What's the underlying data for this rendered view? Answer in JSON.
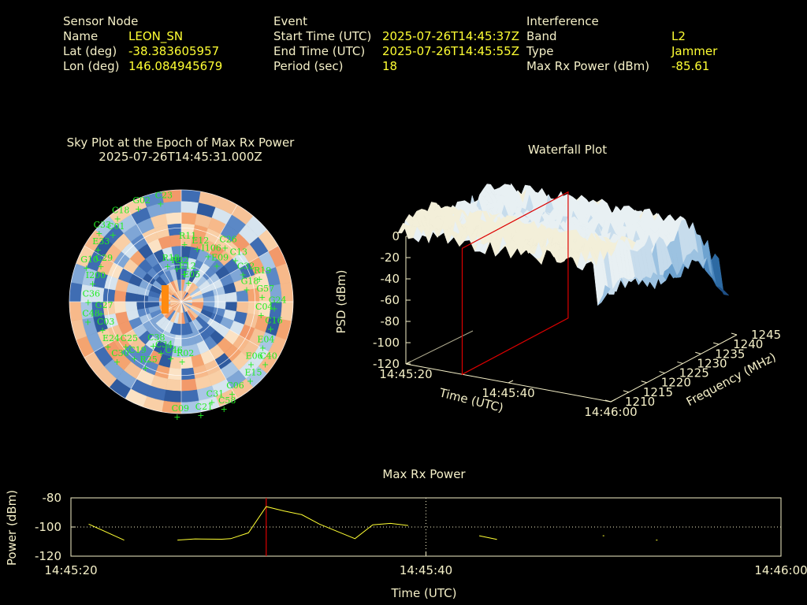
{
  "header": {
    "sensor": {
      "heading": "Sensor Node",
      "rows": [
        {
          "label": "Name",
          "value": "LEON_SN"
        },
        {
          "label": "Lat (deg)",
          "value": "-38.383605957"
        },
        {
          "label": "Lon (deg)",
          "value": "146.084945679"
        }
      ]
    },
    "event": {
      "heading": "Event",
      "rows": [
        {
          "label": "Start Time (UTC)",
          "value": "2025-07-26T14:45:37Z"
        },
        {
          "label": "End Time (UTC)",
          "value": "2025-07-26T14:45:55Z"
        },
        {
          "label": "Period (sec)",
          "value": "18"
        }
      ]
    },
    "interference": {
      "heading": "Interference",
      "rows": [
        {
          "label": "Band",
          "value": "L2"
        },
        {
          "label": "Type",
          "value": "Jammer"
        },
        {
          "label": "Max Rx Power (dBm)",
          "value": "-85.61"
        }
      ]
    }
  },
  "colors": {
    "label": "#f5f0c8",
    "value": "#ffff33",
    "satellite": "#22ee22",
    "marker_line": "#dd0000",
    "power_line": "#ffff33"
  },
  "chart_data": [
    {
      "type": "heatmap",
      "id": "sky_plot",
      "title": "Sky Plot at the Epoch of Max Rx Power",
      "subtitle": "2025-07-26T14:45:31.000Z",
      "satellites": [
        "E05",
        "C31",
        "C29",
        "G18",
        "C38",
        "C23",
        "E06",
        "G27",
        "E09",
        "C09",
        "C01",
        "C04",
        "C25",
        "E12",
        "C06",
        "I200",
        "C32",
        "C34",
        "G02",
        "E04",
        "C03",
        "I106",
        "C21",
        "E33",
        "G57",
        "C19",
        "R32",
        "E15",
        "C36",
        "C13",
        "C46",
        "C18",
        "C16",
        "E24",
        "E12",
        "C58",
        "G10",
        "R19",
        "R25",
        "R18",
        "C40",
        "C48",
        "C26",
        "R02",
        "C33",
        "G24",
        "C30",
        "R11"
      ]
    },
    {
      "type": "area",
      "id": "waterfall",
      "title": "Waterfall Plot",
      "zlabel": "PSD (dBm)",
      "xlabel": "Time (UTC)",
      "ylabel": "Frequency (MHz)",
      "z_ticks": [
        "0",
        "-20",
        "-40",
        "-60",
        "-80",
        "-100",
        "-120"
      ],
      "time_ticks": [
        "14:45:20",
        "14:45:40",
        "14:46:00"
      ],
      "freq_ticks": [
        "1210",
        "1215",
        "1220",
        "1225",
        "1230",
        "1235",
        "1240",
        "1245"
      ],
      "zlim": [
        -120,
        0
      ],
      "marker_time": "14:45:31"
    },
    {
      "type": "line",
      "id": "max_rx_power",
      "title": "Max Rx Power",
      "xlabel": "Time (UTC)",
      "ylabel": "Power (dBm)",
      "y_ticks": [
        "-80",
        "-100",
        "-120"
      ],
      "x_ticks": [
        "14:45:20",
        "14:45:40",
        "14:46:00"
      ],
      "ylim": [
        -120,
        -80
      ],
      "xlim_seconds": [
        0,
        40
      ],
      "marker_second": 11,
      "series": [
        {
          "segments": [
            [
              [
                1,
                -98
              ],
              [
                3,
                -109
              ]
            ],
            [
              [
                6,
                -109
              ],
              [
                7,
                -108.2
              ],
              [
                8.5,
                -108.4
              ],
              [
                9,
                -108
              ],
              [
                10,
                -104
              ],
              [
                11,
                -86
              ],
              [
                12,
                -89
              ],
              [
                13,
                -91.5
              ],
              [
                14,
                -98
              ],
              [
                15,
                -103
              ],
              [
                16,
                -108
              ],
              [
                17,
                -98.5
              ],
              [
                18,
                -97.5
              ],
              [
                19,
                -99
              ]
            ],
            [
              [
                23,
                -106
              ],
              [
                24,
                -108.5
              ]
            ],
            [
              [
                30,
                -106
              ]
            ],
            [
              [
                33,
                -109
              ]
            ]
          ]
        }
      ]
    }
  ]
}
